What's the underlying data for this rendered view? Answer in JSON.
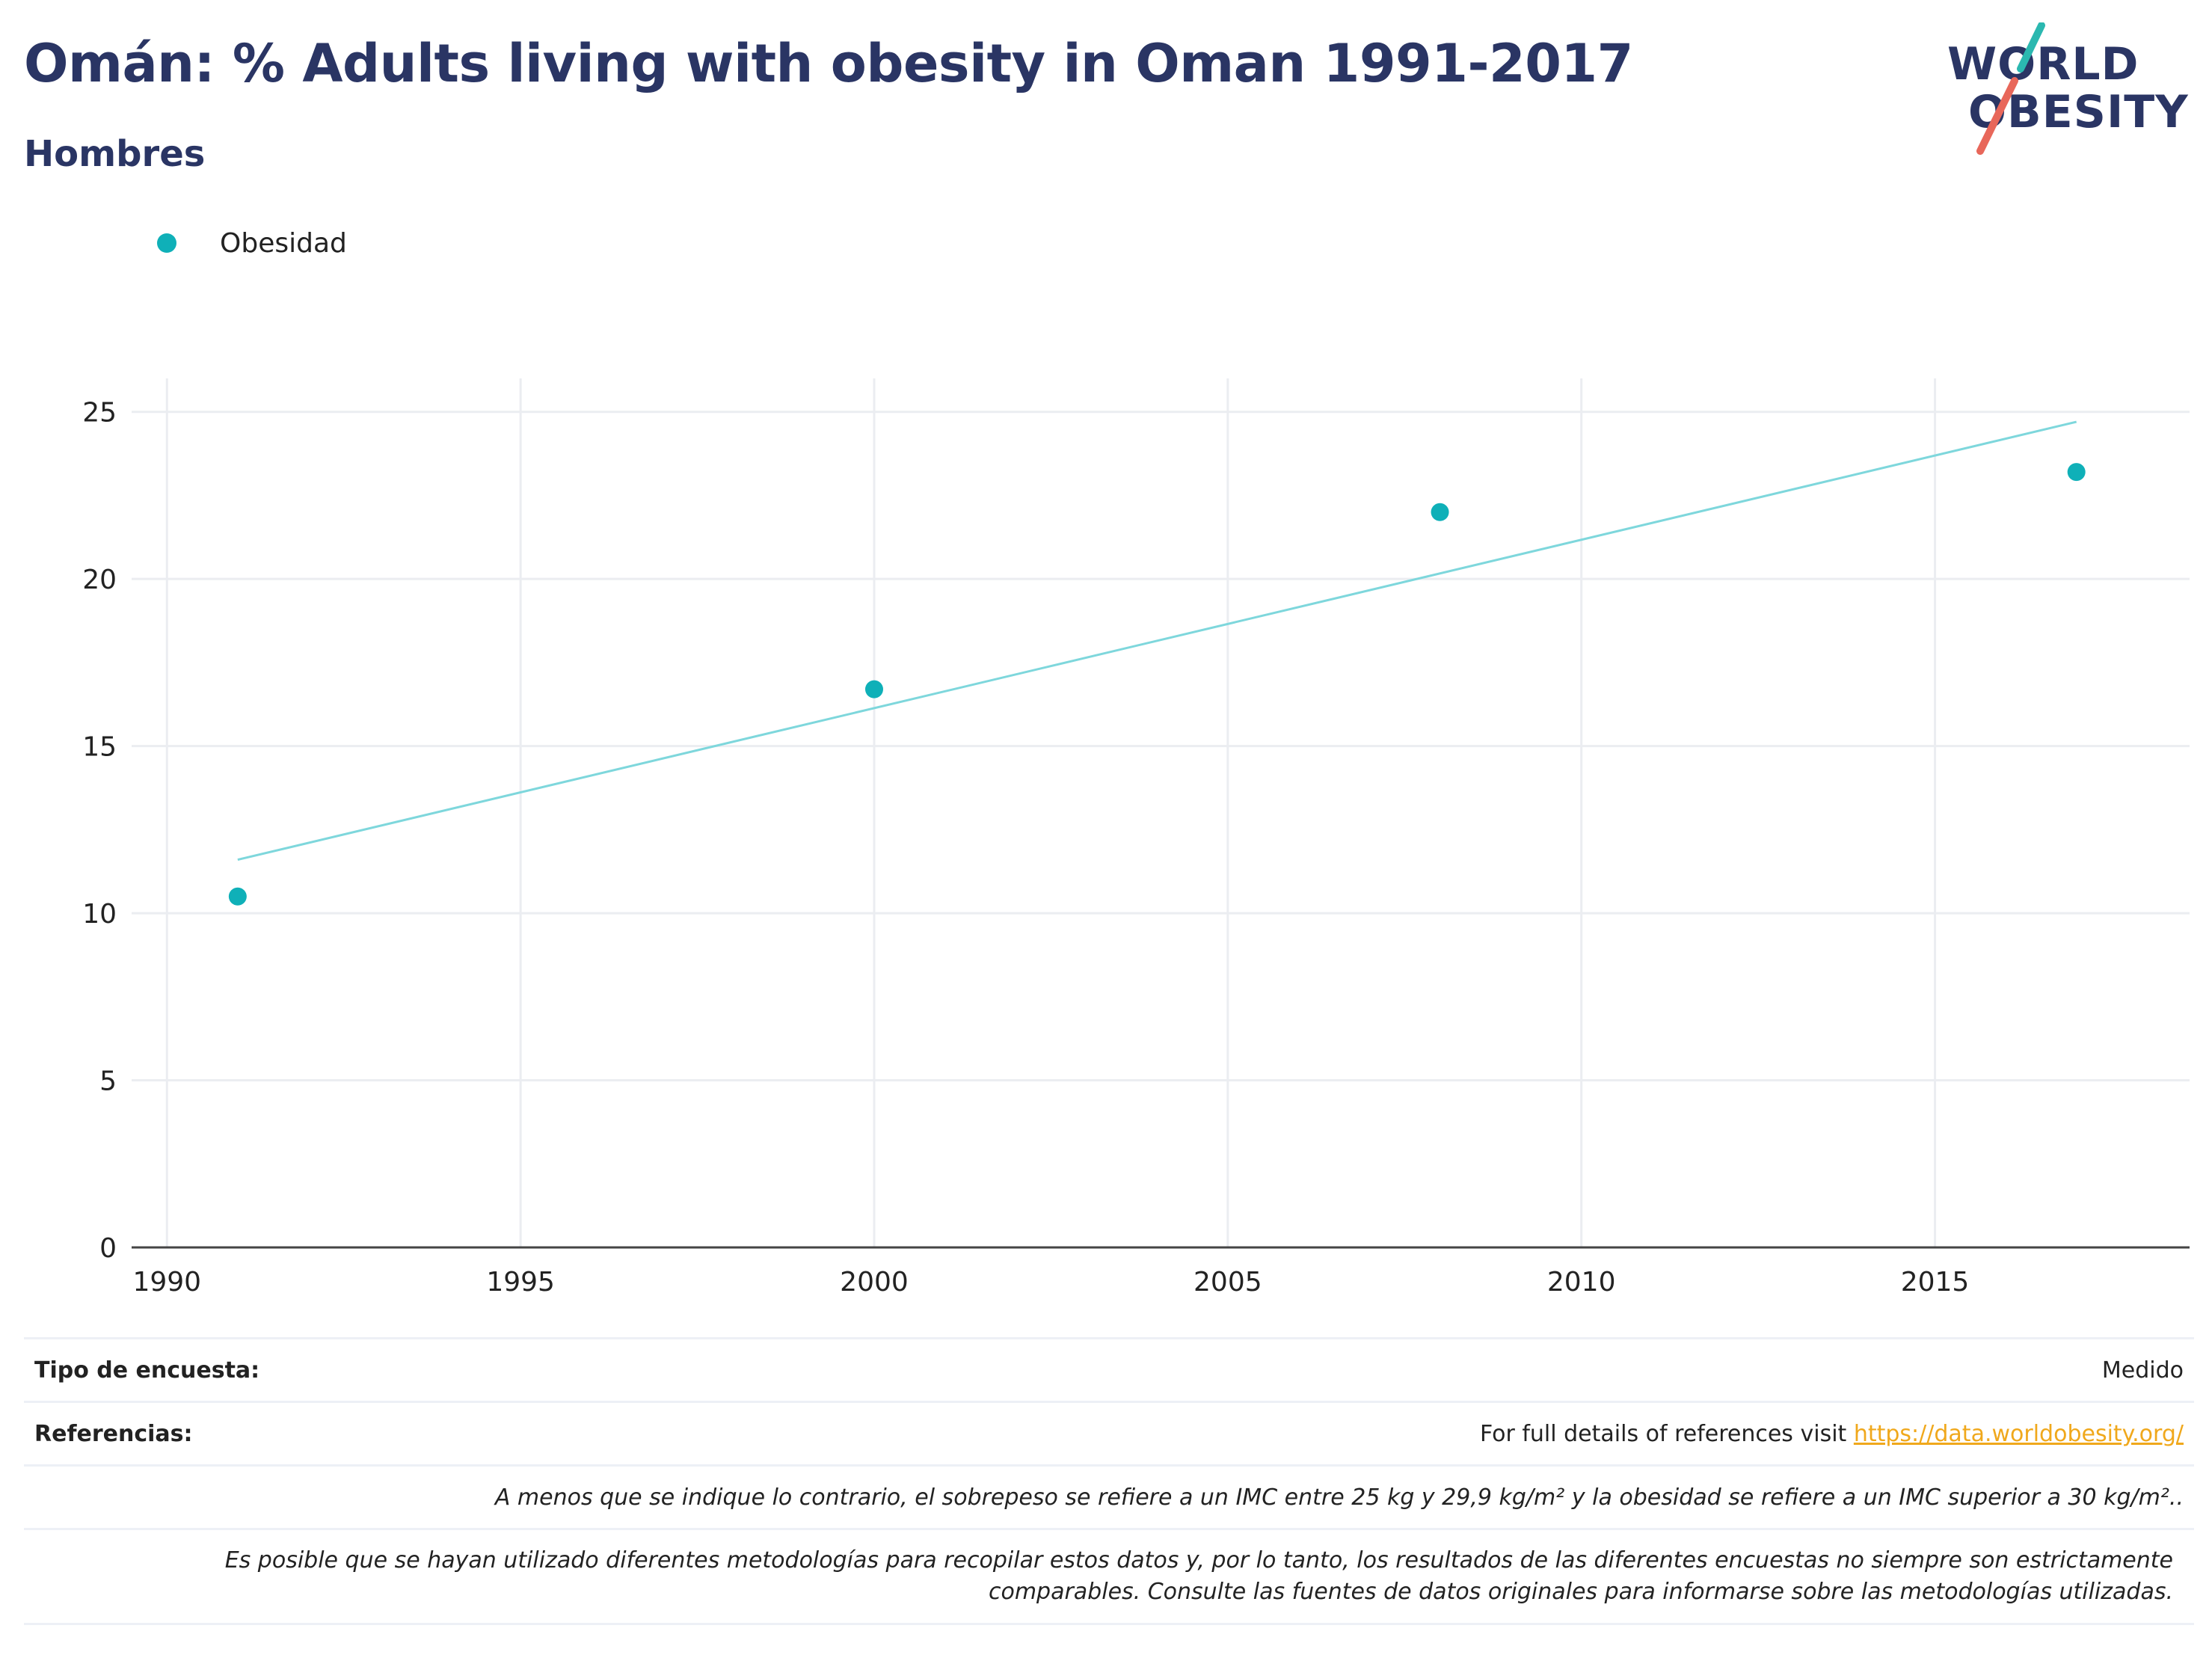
{
  "header": {
    "title": "Omán: % Adults living with obesity in Oman 1991-2017",
    "subtitle": "Hombres"
  },
  "logo": {
    "line1": "WORLD",
    "line2": "OBESITY"
  },
  "legend": {
    "label": "Obesidad"
  },
  "colors": {
    "accent": "#0fb0b8",
    "trend": "#7ed7dc",
    "title": "#2a3564",
    "link": "#f0a81c",
    "logo_red": "#e8675a",
    "logo_teal": "#2bb8b0"
  },
  "chart_data": {
    "type": "scatter",
    "title": "Omán: % Adults living with obesity in Oman 1991-2017",
    "subtitle": "Hombres",
    "xlabel": "",
    "ylabel": "",
    "xlim": [
      1989.5,
      2018.6
    ],
    "ylim": [
      0,
      26
    ],
    "xticks": [
      1990,
      1995,
      2000,
      2005,
      2010,
      2015
    ],
    "yticks": [
      0,
      5,
      10,
      15,
      20,
      25
    ],
    "grid": true,
    "legend_position": "top-left",
    "series": [
      {
        "name": "Obesidad",
        "x": [
          1991,
          2000,
          2008,
          2017
        ],
        "y": [
          10.5,
          16.7,
          22.0,
          23.2
        ]
      }
    ],
    "trendline": {
      "x": [
        1991,
        2017
      ],
      "y": [
        11.6,
        24.7
      ]
    }
  },
  "footer": {
    "survey_type_label": "Tipo de encuesta:",
    "survey_type_value": "Medido",
    "references_label": "Referencias:",
    "references_text": "For full details of references visit ",
    "references_link": "https://data.worldobesity.org/",
    "note1": "A menos que se indique lo contrario, el sobrepeso se refiere a un IMC entre 25 kg y 29,9 kg/m² y la obesidad se refiere a un IMC superior a 30 kg/m²..",
    "note2_line1": "Es posible que se hayan utilizado diferentes metodologías para recopilar estos datos y, por lo tanto, los resultados de las diferentes encuestas no siempre son estrictamente",
    "note2_line2": "comparables. Consulte las fuentes de datos originales para informarse sobre las metodologías utilizadas."
  }
}
